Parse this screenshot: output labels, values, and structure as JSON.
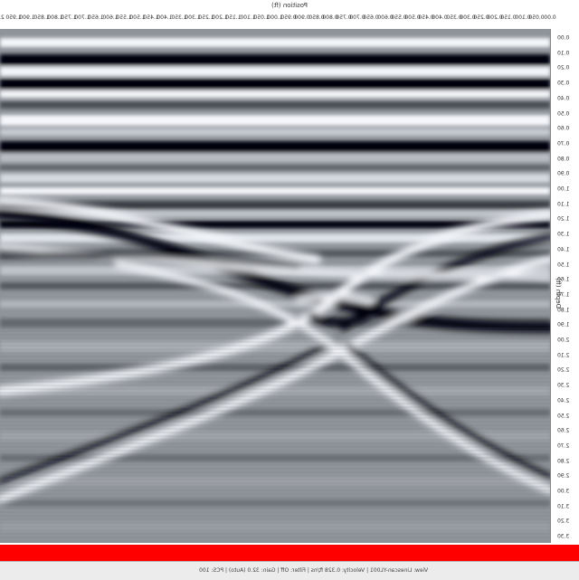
{
  "header": {
    "axis_title": "Position (ft)"
  },
  "x_axis": {
    "ticks": [
      "0.00",
      "0.050",
      "0.100",
      "0.150",
      "0.200",
      "0.250",
      "0.300",
      "0.350",
      "0.400",
      "0.450",
      "0.500",
      "0.550",
      "0.600",
      "0.650",
      "0.700",
      "0.750",
      "0.800",
      "0.850",
      "0.900",
      "0.950",
      "1.000",
      "1.050",
      "1.100",
      "1.150",
      "1.200",
      "1.250",
      "1.300",
      "1.350",
      "1.400",
      "1.450",
      "1.500",
      "1.550",
      "1.600",
      "1.650",
      "1.700",
      "1.750",
      "1.800",
      "1.850",
      "1.900",
      "1.950",
      "2.0"
    ]
  },
  "y_axis": {
    "title": "Depth (ft)",
    "ticks": [
      "0.00",
      "0.10",
      "0.20",
      "0.30",
      "0.40",
      "0.50",
      "0.60",
      "0.70",
      "0.80",
      "0.90",
      "1.00",
      "1.10",
      "1.20",
      "1.30",
      "1.40",
      "1.50",
      "1.60",
      "1.70",
      "1.80",
      "1.90",
      "2.00",
      "2.10",
      "2.20",
      "2.30",
      "2.40",
      "2.50",
      "2.60",
      "2.70",
      "2.80",
      "2.90",
      "3.00",
      "3.10",
      "3.20",
      "3.30"
    ]
  },
  "status": {
    "text": "View: Linescan-YL001 | Velocity: 0.328 ft/ns | Filter: Off | Gain: 32.0 (Auto) | PCS: 100"
  },
  "colors": {
    "scroll_bar": "#ff0000",
    "radar_dark": "#050508",
    "radar_light": "#f4f6fa"
  },
  "icons": {
    "scroll": "horizontal-scrollbar"
  }
}
